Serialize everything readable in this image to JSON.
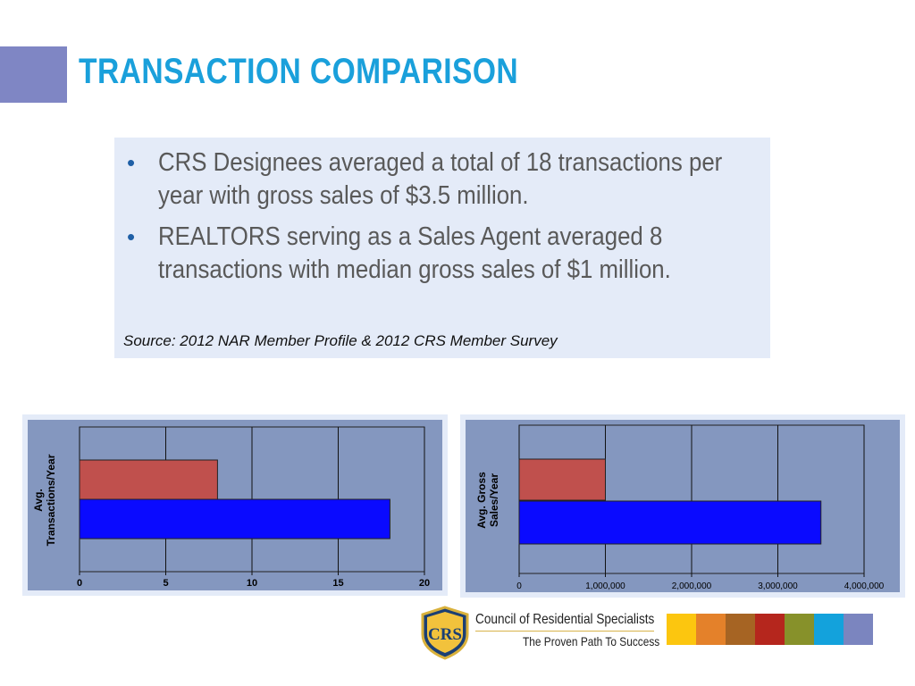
{
  "slide": {
    "title": "TRANSACTION COMPARISON",
    "bullets": [
      "CRS Designees averaged a total of 18 transactions per year with gross sales of $3.5 million.",
      "REALTORS serving as a Sales Agent averaged 8 transactions with median gross sales of $1 million."
    ],
    "source": "Source: 2012 NAR Member Profile & 2012 CRS Member Survey"
  },
  "chart_data": [
    {
      "type": "bar",
      "orientation": "horizontal",
      "ylabel": [
        "Avg.",
        "Transactions/Year"
      ],
      "xlim": [
        0,
        20
      ],
      "ticks": [
        "0",
        "5",
        "10",
        "15",
        "20"
      ],
      "grid": true,
      "series": [
        {
          "values": [
            8
          ],
          "color": "#c0504d"
        },
        {
          "values": [
            18
          ],
          "color": "#0a0aff"
        }
      ]
    },
    {
      "type": "bar",
      "orientation": "horizontal",
      "ylabel": [
        "Avg. Gross",
        "Sales/Year"
      ],
      "xlim": [
        0,
        4000000
      ],
      "ticks": [
        "0",
        "1,000,000",
        "2,000,000",
        "3,000,000",
        "4,000,000"
      ],
      "grid": true,
      "series": [
        {
          "values": [
            1000000
          ],
          "color": "#c0504d"
        },
        {
          "values": [
            3500000
          ],
          "color": "#0a0aff"
        }
      ]
    }
  ],
  "logo": {
    "emblem_text": "CRS",
    "org_name": "Council of Residential Specialists",
    "tagline": "The Proven Path To Success",
    "color_bar": [
      "#fcc60f",
      "#e4812a",
      "#a66423",
      "#b5261d",
      "#87912a",
      "#13a2dc",
      "#7b85bf"
    ]
  }
}
